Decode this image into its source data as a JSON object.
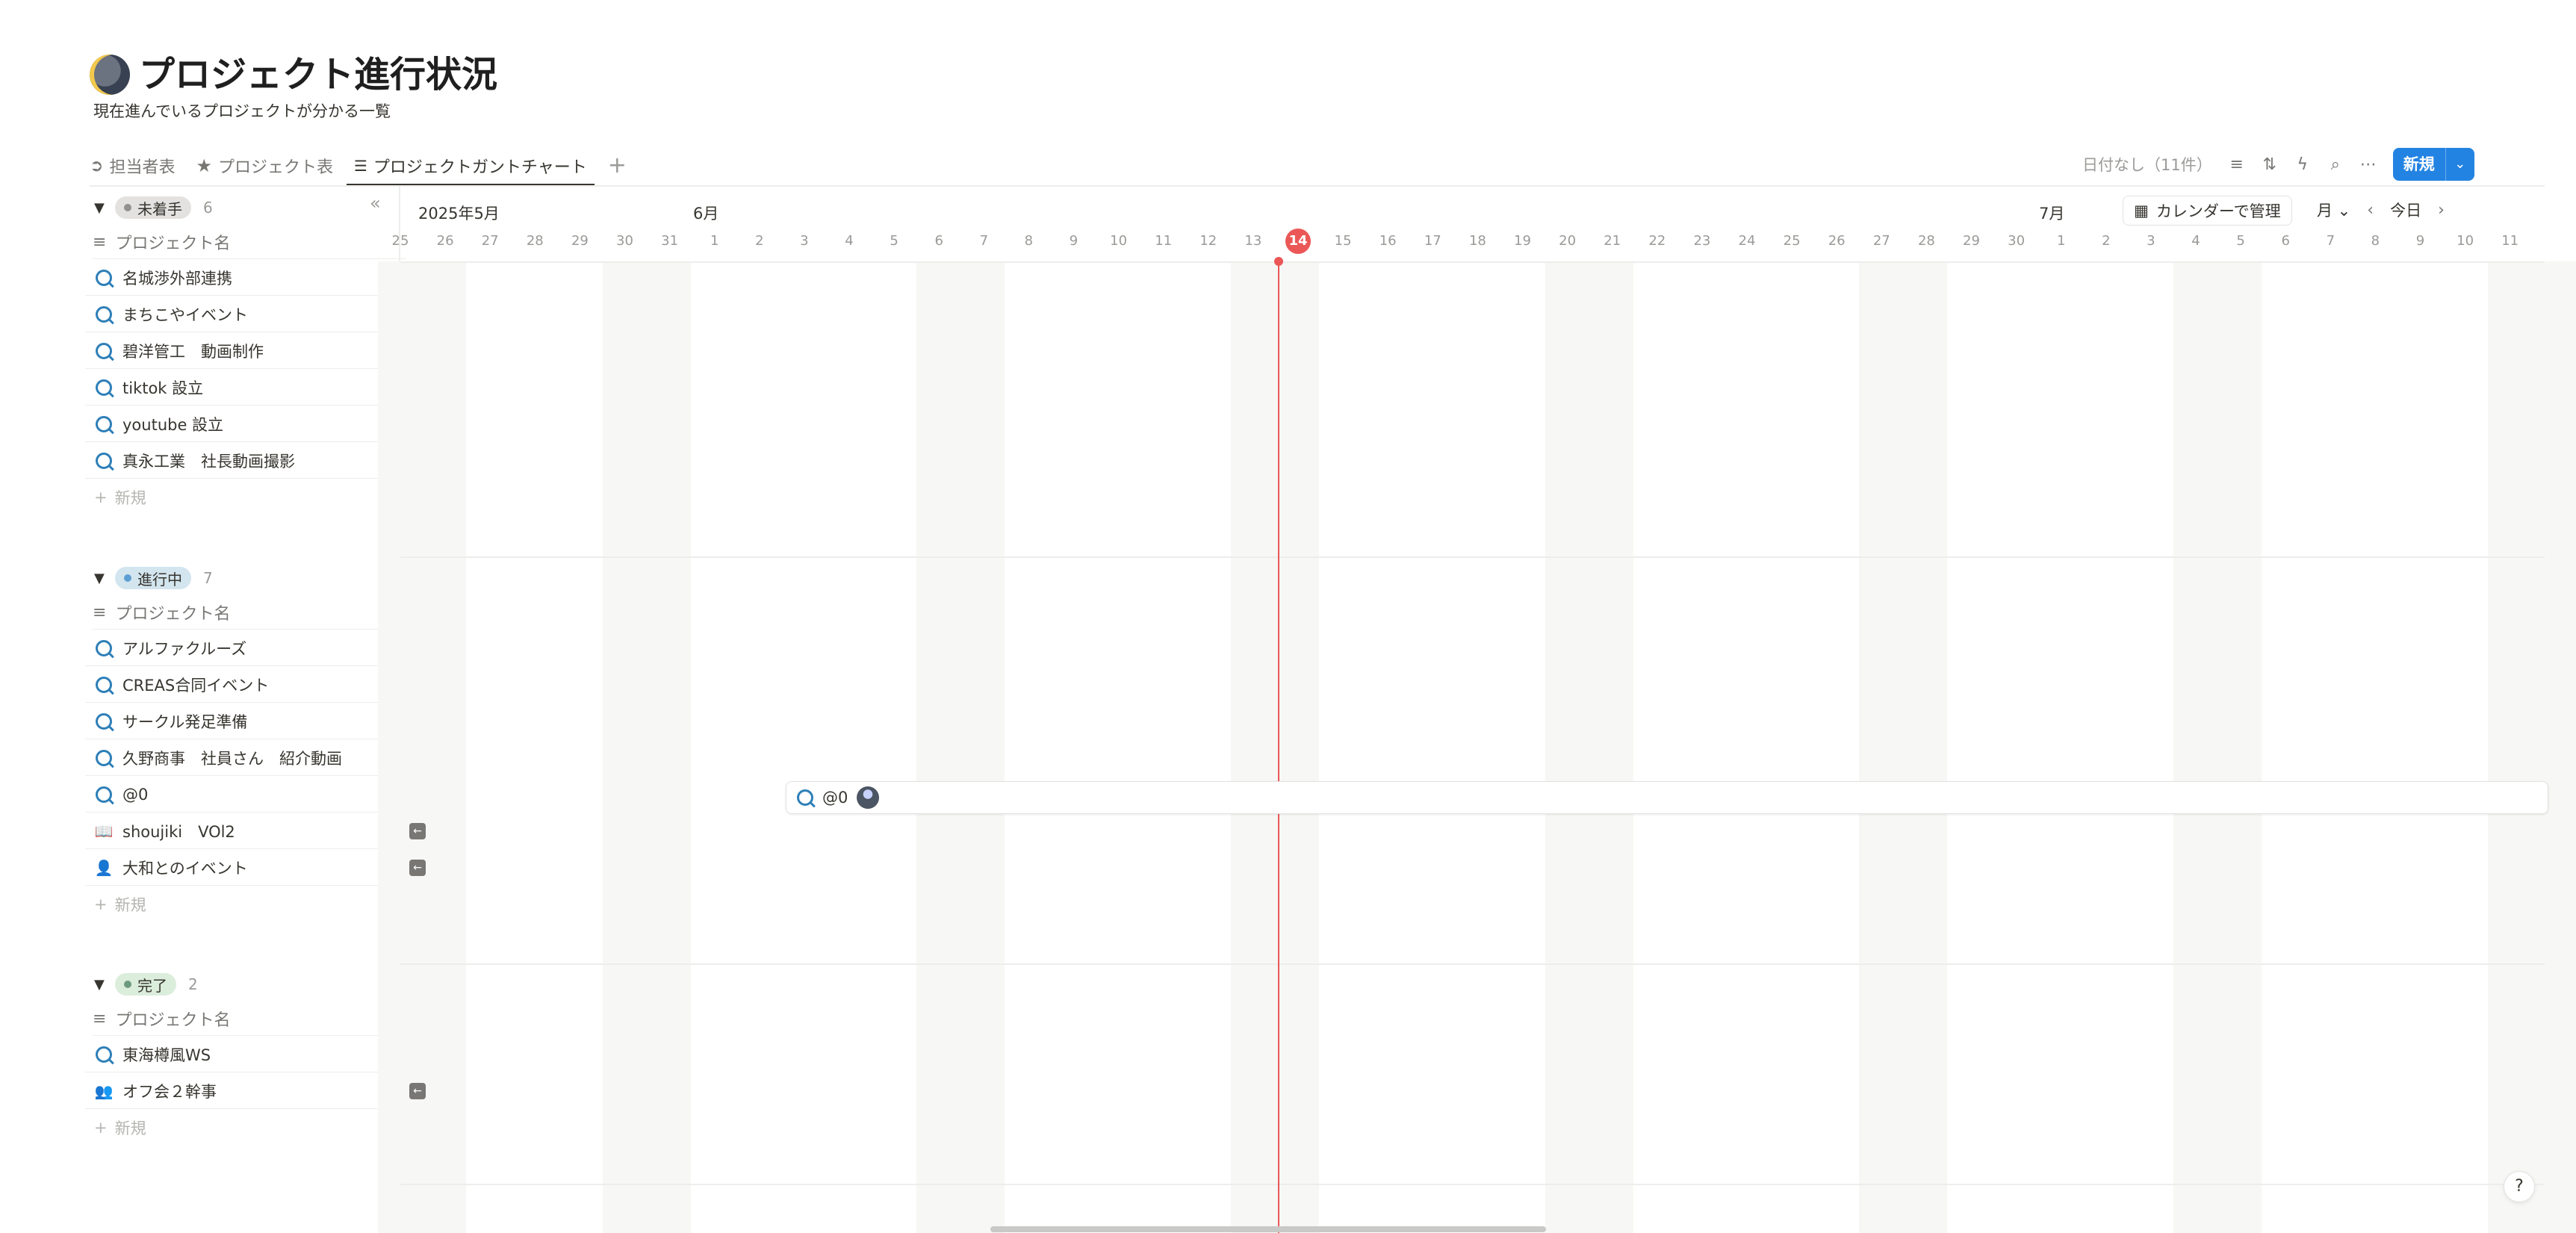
{
  "page": {
    "title": "プロジェクト進行状況",
    "subtitle": "現在進んでいるプロジェクトが分かる一覧",
    "title_icon": "moon-icon"
  },
  "tabs": [
    {
      "label": "担当者表",
      "icon": "arrow-circle-icon"
    },
    {
      "label": "プロジェクト表",
      "icon": "star-icon"
    },
    {
      "label": "プロジェクトガントチャート",
      "icon": "gantt-icon",
      "active": true
    }
  ],
  "toolbar": {
    "no_date": "日付なし（11件）",
    "new_label": "新規"
  },
  "timeline": {
    "month_may": "2025年5月",
    "month_jun": "6月",
    "month_jul": "7月",
    "days": [
      "25",
      "26",
      "27",
      "28",
      "29",
      "30",
      "31",
      "1",
      "2",
      "3",
      "4",
      "5",
      "6",
      "7",
      "8",
      "9",
      "10",
      "11",
      "12",
      "13",
      "14",
      "15",
      "16",
      "17",
      "18",
      "19",
      "20",
      "21",
      "22",
      "23",
      "24",
      "25",
      "26",
      "27",
      "28",
      "29",
      "30",
      "1",
      "2",
      "3",
      "4",
      "5",
      "6",
      "7",
      "8",
      "9",
      "10",
      "11"
    ],
    "today": "14",
    "calendar_button": "カレンダーで管理",
    "view_mode": "月",
    "today_button": "今日"
  },
  "property_header": "プロジェクト名",
  "add_label": "新規",
  "groups": [
    {
      "status": "未着手",
      "count": "6",
      "color": "#e3e2e0",
      "dot": "#91918e",
      "items": [
        "名城渉外部連携",
        "まちこやイベント",
        "碧洋管工　動画制作",
        "tiktok 設立",
        "youtube 設立",
        "真永工業　社長動画撮影"
      ]
    },
    {
      "status": "進行中",
      "count": "7",
      "color": "#d3e5ef",
      "dot": "#5e9fd3",
      "items": [
        "アルファクルーズ",
        "CREAS合同イベント",
        "サークル発足準備",
        "久野商事　社員さん　紹介動画",
        "@0",
        "shoujiki　VOl2",
        "大和とのイベント"
      ]
    },
    {
      "status": "完了",
      "count": "2",
      "color": "#dbeddb",
      "dot": "#6c9b7d",
      "items": [
        "東海樽風WS",
        "オフ会２幹事"
      ]
    }
  ],
  "task_bar": {
    "label": "@0"
  }
}
